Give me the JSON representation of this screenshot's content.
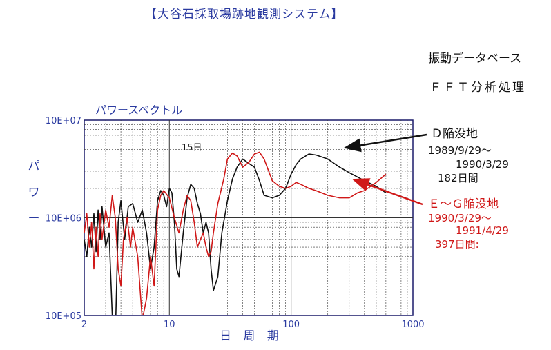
{
  "header": {
    "system_title": "【大谷石採取場跡地観測システム】",
    "database_label": "振動データベース",
    "analysis_label": "ＦＦＴ分析処理"
  },
  "chart_data": {
    "type": "line",
    "title": "パワースペクトル",
    "xlabel": "日 周 期",
    "ylabel": "パワー",
    "x_scale": "log",
    "y_scale": "log",
    "xlim": [
      2,
      1000
    ],
    "ylim": [
      100000,
      10000000
    ],
    "x_tick_labels": [
      "2",
      "10",
      "100",
      "1000"
    ],
    "x_tick_values": [
      2,
      10,
      100,
      1000
    ],
    "y_tick_labels": [
      "10E+05",
      "10E+06",
      "10E+07"
    ],
    "y_tick_values": [
      100000,
      1000000,
      10000000
    ],
    "grid": true,
    "annotation": "15日",
    "series": [
      {
        "name": "D陥没地",
        "color": "#111111",
        "period": "1989/9/29〜 1990/3/29",
        "days": "182日間",
        "points": [
          [
            2,
            600000
          ],
          [
            2.1,
            400000
          ],
          [
            2.2,
            800000
          ],
          [
            2.3,
            500000
          ],
          [
            2.4,
            1100000
          ],
          [
            2.5,
            450000
          ],
          [
            2.6,
            1200000
          ],
          [
            2.7,
            600000
          ],
          [
            2.8,
            1300000
          ],
          [
            3,
            500000
          ],
          [
            3.2,
            700000
          ],
          [
            3.4,
            100000
          ],
          [
            3.6,
            60000
          ],
          [
            3.8,
            900000
          ],
          [
            4,
            1500000
          ],
          [
            4.3,
            600000
          ],
          [
            4.6,
            1300000
          ],
          [
            5,
            1400000
          ],
          [
            5.5,
            900000
          ],
          [
            6,
            1200000
          ],
          [
            6.5,
            700000
          ],
          [
            7,
            300000
          ],
          [
            7.5,
            500000
          ],
          [
            8,
            1500000
          ],
          [
            8.5,
            1900000
          ],
          [
            9,
            1700000
          ],
          [
            9.5,
            1300000
          ],
          [
            10,
            2000000
          ],
          [
            10.5,
            1800000
          ],
          [
            11,
            900000
          ],
          [
            11.5,
            300000
          ],
          [
            12,
            250000
          ],
          [
            13,
            700000
          ],
          [
            14,
            1600000
          ],
          [
            15,
            2200000
          ],
          [
            16,
            2000000
          ],
          [
            17,
            1400000
          ],
          [
            18,
            1100000
          ],
          [
            19,
            700000
          ],
          [
            20,
            900000
          ],
          [
            21,
            700000
          ],
          [
            22,
            300000
          ],
          [
            23,
            180000
          ],
          [
            25,
            250000
          ],
          [
            27,
            700000
          ],
          [
            30,
            1500000
          ],
          [
            33,
            2500000
          ],
          [
            36,
            3300000
          ],
          [
            40,
            4000000
          ],
          [
            45,
            3600000
          ],
          [
            50,
            3300000
          ],
          [
            55,
            2400000
          ],
          [
            60,
            1700000
          ],
          [
            70,
            1600000
          ],
          [
            80,
            1700000
          ],
          [
            90,
            2000000
          ],
          [
            100,
            2800000
          ],
          [
            110,
            3500000
          ],
          [
            120,
            4000000
          ],
          [
            140,
            4500000
          ],
          [
            160,
            4400000
          ],
          [
            200,
            4000000
          ],
          [
            250,
            3300000
          ],
          [
            300,
            2900000
          ],
          [
            400,
            2400000
          ],
          [
            500,
            2100000
          ],
          [
            600,
            1800000
          ]
        ]
      },
      {
        "name": "E〜G陥没地",
        "color": "#d01818",
        "period": "1990/3/29〜 1991/4/29",
        "days": "397日間",
        "points": [
          [
            2,
            700000
          ],
          [
            2.1,
            1100000
          ],
          [
            2.2,
            500000
          ],
          [
            2.3,
            900000
          ],
          [
            2.4,
            300000
          ],
          [
            2.5,
            800000
          ],
          [
            2.6,
            400000
          ],
          [
            2.7,
            1100000
          ],
          [
            2.8,
            600000
          ],
          [
            3,
            1200000
          ],
          [
            3.2,
            800000
          ],
          [
            3.4,
            1700000
          ],
          [
            3.6,
            1000000
          ],
          [
            3.8,
            300000
          ],
          [
            4,
            200000
          ],
          [
            4.2,
            600000
          ],
          [
            4.5,
            1000000
          ],
          [
            4.8,
            500000
          ],
          [
            5,
            800000
          ],
          [
            5.5,
            400000
          ],
          [
            6,
            90000
          ],
          [
            6.5,
            150000
          ],
          [
            7,
            400000
          ],
          [
            7.5,
            200000
          ],
          [
            8,
            1200000
          ],
          [
            8.5,
            1700000
          ],
          [
            9,
            1900000
          ],
          [
            10,
            1600000
          ],
          [
            11,
            1000000
          ],
          [
            12,
            700000
          ],
          [
            13,
            1200000
          ],
          [
            14,
            1700000
          ],
          [
            15,
            1500000
          ],
          [
            16,
            900000
          ],
          [
            17,
            500000
          ],
          [
            18,
            600000
          ],
          [
            19,
            700000
          ],
          [
            20,
            500000
          ],
          [
            21,
            400000
          ],
          [
            22,
            450000
          ],
          [
            23,
            700000
          ],
          [
            25,
            1400000
          ],
          [
            28,
            2500000
          ],
          [
            30,
            4000000
          ],
          [
            33,
            4600000
          ],
          [
            36,
            4300000
          ],
          [
            40,
            3300000
          ],
          [
            45,
            3700000
          ],
          [
            50,
            4500000
          ],
          [
            55,
            4700000
          ],
          [
            60,
            4000000
          ],
          [
            70,
            2400000
          ],
          [
            80,
            2100000
          ],
          [
            90,
            2000000
          ],
          [
            100,
            2100000
          ],
          [
            110,
            2300000
          ],
          [
            120,
            2200000
          ],
          [
            140,
            2000000
          ],
          [
            160,
            1900000
          ],
          [
            200,
            1700000
          ],
          [
            250,
            1600000
          ],
          [
            300,
            1600000
          ],
          [
            350,
            1800000
          ],
          [
            400,
            1900000
          ],
          [
            500,
            2300000
          ],
          [
            600,
            2800000
          ]
        ]
      }
    ]
  },
  "legend": {
    "d": {
      "title": "Ｄ陥没地",
      "from": "1989/9/29〜",
      "to": "1990/3/29",
      "days": "182日間"
    },
    "e": {
      "title": "Ｅ〜Ｇ陥没地",
      "from": "1990/3/29〜",
      "to": "1991/4/29",
      "days": "397日間:"
    }
  }
}
